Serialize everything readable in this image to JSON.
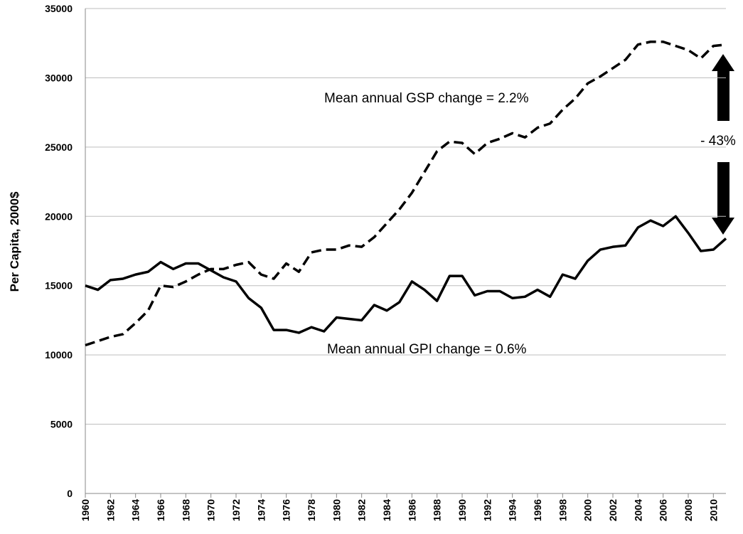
{
  "chart_data": {
    "type": "line",
    "y_label": "Per Capita, 2000$",
    "x": [
      1960,
      1961,
      1962,
      1963,
      1964,
      1965,
      1966,
      1967,
      1968,
      1969,
      1970,
      1971,
      1972,
      1973,
      1974,
      1975,
      1976,
      1977,
      1978,
      1979,
      1980,
      1981,
      1982,
      1983,
      1984,
      1985,
      1986,
      1987,
      1988,
      1989,
      1990,
      1991,
      1992,
      1993,
      1994,
      1995,
      1996,
      1997,
      1998,
      1999,
      2000,
      2001,
      2002,
      2003,
      2004,
      2005,
      2006,
      2007,
      2008,
      2009,
      2010,
      2011
    ],
    "series": [
      {
        "color": "#000000",
        "dash": true,
        "values": [
          10700,
          11000,
          11300,
          11500,
          12300,
          13200,
          15000,
          14900,
          15300,
          15800,
          16200,
          16200,
          16500,
          16700,
          15800,
          15500,
          16600,
          16000,
          17400,
          17600,
          17600,
          17900,
          17800,
          18500,
          19500,
          20500,
          21700,
          23200,
          24700,
          25400,
          25300,
          24500,
          25300,
          25600,
          26000,
          25700,
          26400,
          26700,
          27700,
          28500,
          29600,
          30100,
          30700,
          31300,
          32400,
          32600,
          32600,
          32300,
          32000,
          31400,
          32300,
          32400
        ]
      },
      {
        "color": "#000000",
        "dash": false,
        "values": [
          15000,
          14700,
          15400,
          15500,
          15800,
          16000,
          16700,
          16200,
          16600,
          16600,
          16100,
          15600,
          15300,
          14100,
          13400,
          11800,
          11800,
          11600,
          12000,
          11700,
          12700,
          12600,
          12500,
          13600,
          13200,
          13800,
          15300,
          14700,
          13900,
          15700,
          15700,
          14300,
          14600,
          14600,
          14100,
          14200,
          14700,
          14200,
          15800,
          15500,
          16800,
          17600,
          17800,
          17900,
          19200,
          19700,
          19300,
          20000,
          18800,
          17500,
          17600,
          18400
        ]
      }
    ],
    "xlim": [
      1960,
      2011
    ],
    "xticks": [
      1960,
      1962,
      1964,
      1966,
      1968,
      1970,
      1972,
      1974,
      1976,
      1978,
      1980,
      1982,
      1984,
      1986,
      1988,
      1990,
      1992,
      1994,
      1996,
      1998,
      2000,
      2002,
      2004,
      2006,
      2008,
      2010
    ],
    "ylim": [
      0,
      35000
    ],
    "yticks": [
      0,
      5000,
      10000,
      15000,
      20000,
      25000,
      30000,
      35000
    ],
    "grid": true,
    "annotations": [
      "Mean annual GSP change = 2.2%",
      "Mean annual GPI change = 0.6%",
      "- 43%"
    ]
  }
}
